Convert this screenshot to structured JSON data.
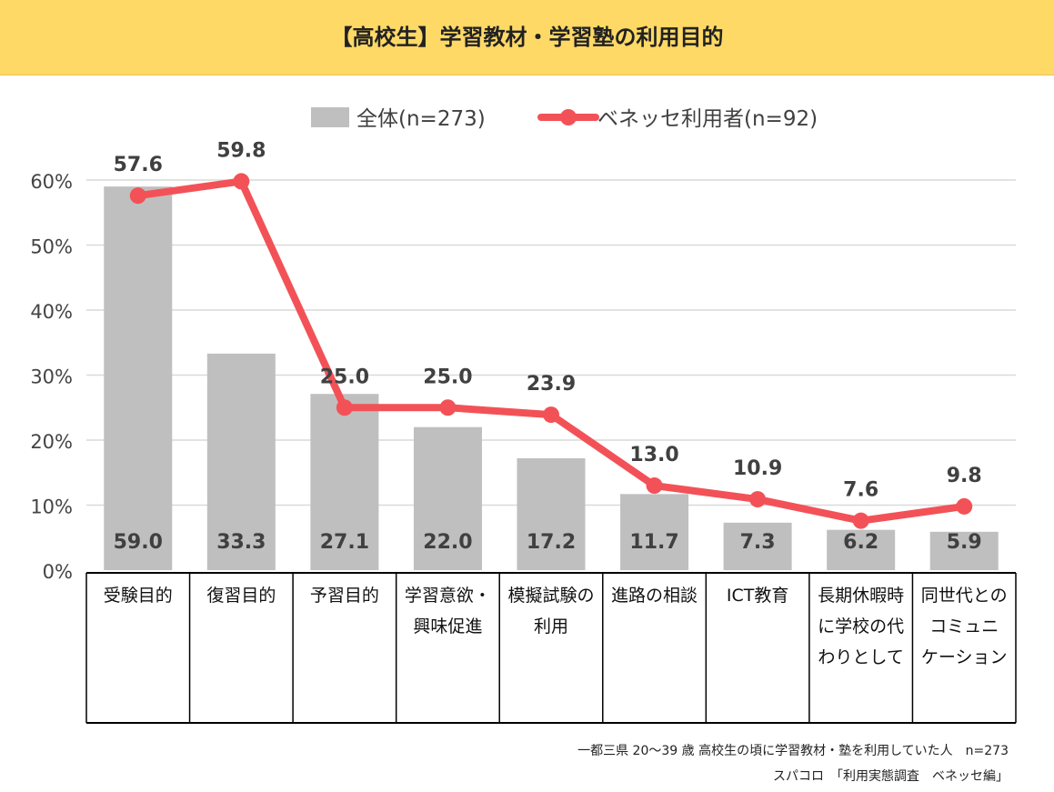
{
  "title": "【高校生】学習教材・学習塾の利用目的",
  "colors": {
    "title_bg": "#FFD966",
    "bar": "#BFBFBF",
    "line": "#F25257",
    "grid": "#D9D9D9"
  },
  "chart_data": {
    "type": "bar+line",
    "title": "【高校生】学習教材・学習塾の利用目的",
    "ylim": [
      0,
      60
    ],
    "yticks": [
      "0%",
      "10%",
      "20%",
      "30%",
      "40%",
      "50%",
      "60%"
    ],
    "ytick_values": [
      0,
      10,
      20,
      30,
      40,
      50,
      60
    ],
    "categories": [
      [
        "受験目的"
      ],
      [
        "復習目的"
      ],
      [
        "予習目的"
      ],
      [
        "学習意欲・",
        "興味促進"
      ],
      [
        "模擬試験の",
        "利用"
      ],
      [
        "進路の相談"
      ],
      [
        "ICT教育"
      ],
      [
        "長期休暇時",
        "に学校の代",
        "わりとして"
      ],
      [
        "同世代との",
        "コミュニ",
        "ケーション"
      ]
    ],
    "series": [
      {
        "name": "全体(n=273)",
        "type": "bar",
        "values": [
          59.0,
          33.3,
          27.1,
          22.0,
          17.2,
          11.7,
          7.3,
          6.2,
          5.9
        ],
        "labels": [
          "59.0",
          "33.3",
          "27.1",
          "22.0",
          "17.2",
          "11.7",
          "7.3",
          "6.2",
          "5.9"
        ]
      },
      {
        "name": "ベネッセ利用者(n=92)",
        "type": "line",
        "values": [
          57.6,
          59.8,
          25.0,
          25.0,
          23.9,
          13.0,
          10.9,
          7.6,
          9.8
        ],
        "labels": [
          "57.6",
          "59.8",
          "25.0",
          "25.0",
          "23.9",
          "13.0",
          "10.9",
          "7.6",
          "9.8"
        ]
      }
    ],
    "legend": "top"
  },
  "notes": {
    "line1": "一都三県 20～39 歳 高校生の頃に学習教材・塾を利用していた人　n=273",
    "line2": "スパコロ　「利用実態調査　ベネッセ編」"
  }
}
